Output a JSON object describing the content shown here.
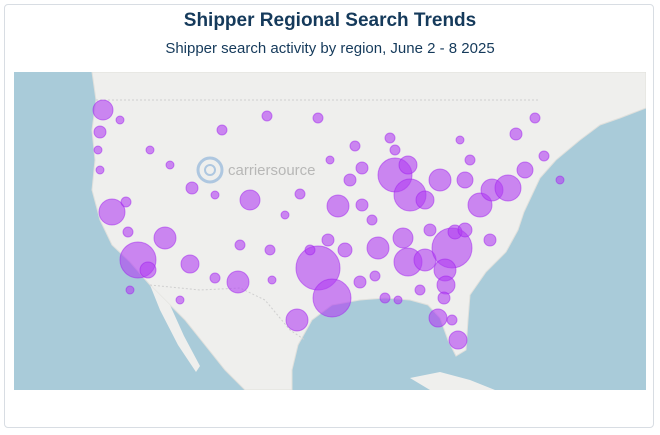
{
  "header": {
    "title": "Shipper Regional Search Trends",
    "subtitle": "Shipper search activity by region, June 2 - 8 2025"
  },
  "map": {
    "watermark": "carriersource"
  }
}
